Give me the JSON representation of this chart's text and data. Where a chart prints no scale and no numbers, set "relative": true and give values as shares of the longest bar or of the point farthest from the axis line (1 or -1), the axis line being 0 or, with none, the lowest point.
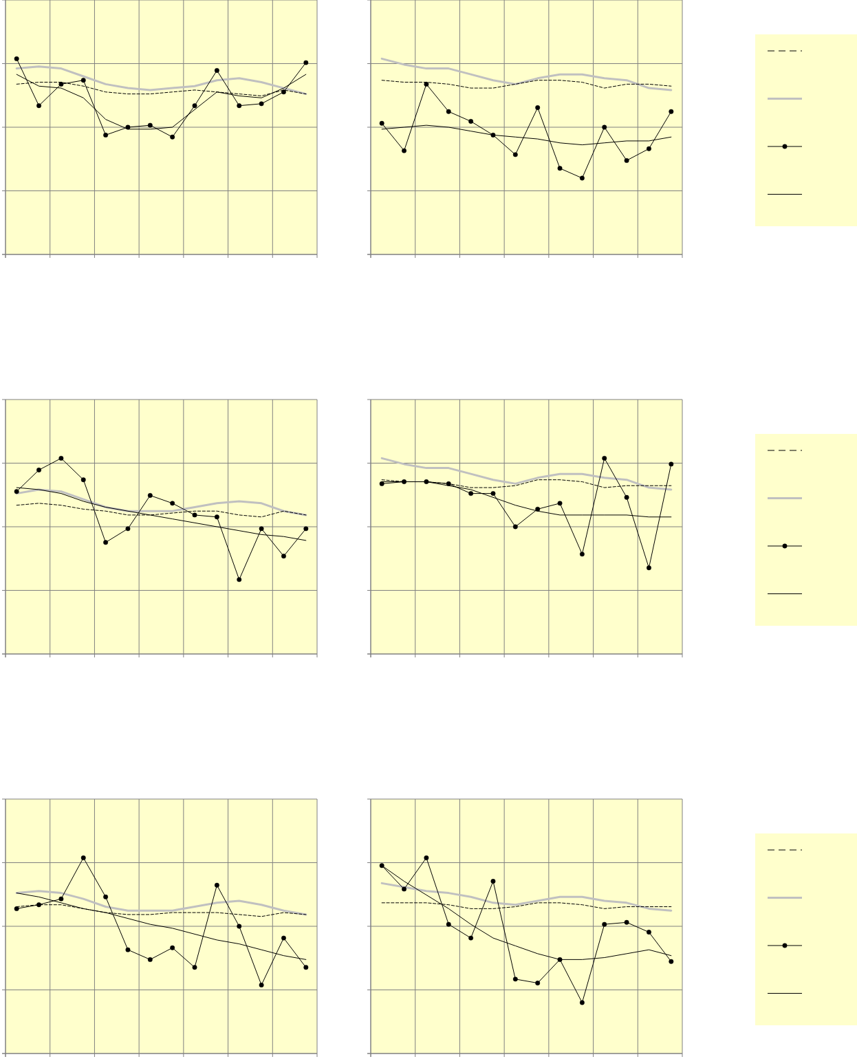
{
  "chart_data": [
    {
      "type": "line",
      "relative": true,
      "grid": true,
      "categories": [
        null,
        null,
        null,
        null,
        null,
        null,
        null,
        null,
        null,
        null,
        null,
        null,
        null,
        null
      ],
      "series": [
        {
          "color": "#000000",
          "line_style": "dashed",
          "marker": "none",
          "values": [
            0.87,
            0.88,
            0.88,
            0.86,
            0.83,
            0.82,
            0.82,
            0.83,
            0.84,
            0.83,
            0.82,
            0.81,
            0.84,
            0.82
          ]
        },
        {
          "color": "#c0c0c0",
          "line_style": "solid",
          "marker": "none",
          "values": [
            0.95,
            0.96,
            0.95,
            0.91,
            0.87,
            0.85,
            0.84,
            0.85,
            0.86,
            0.89,
            0.9,
            0.88,
            0.85,
            0.82
          ]
        },
        {
          "color": "#000000",
          "line_style": "solid",
          "marker": "circle",
          "values": [
            1.0,
            0.76,
            0.87,
            0.89,
            0.61,
            0.65,
            0.66,
            0.6,
            0.76,
            0.94,
            0.76,
            0.77,
            0.83,
            0.98
          ]
        },
        {
          "color": "#000000",
          "line_style": "solid",
          "marker": "none",
          "values": [
            0.92,
            0.86,
            0.85,
            0.8,
            0.69,
            0.64,
            0.64,
            0.65,
            0.74,
            0.83,
            0.81,
            0.8,
            0.85,
            0.92
          ]
        }
      ]
    },
    {
      "type": "line",
      "relative": true,
      "grid": true,
      "categories": [
        null,
        null,
        null,
        null,
        null,
        null,
        null,
        null,
        null,
        null,
        null,
        null,
        null,
        null
      ],
      "series": [
        {
          "color": "#000000",
          "line_style": "dashed",
          "marker": "none",
          "values": [
            0.89,
            0.88,
            0.88,
            0.87,
            0.85,
            0.85,
            0.87,
            0.89,
            0.89,
            0.88,
            0.85,
            0.87,
            0.87,
            0.86
          ]
        },
        {
          "color": "#c0c0c0",
          "line_style": "solid",
          "marker": "none",
          "values": [
            1.0,
            0.97,
            0.95,
            0.95,
            0.92,
            0.89,
            0.87,
            0.9,
            0.92,
            0.92,
            0.9,
            0.89,
            0.85,
            0.84
          ]
        },
        {
          "color": "#000000",
          "line_style": "solid",
          "marker": "circle",
          "values": [
            0.67,
            0.53,
            0.87,
            0.73,
            0.68,
            0.61,
            0.51,
            0.75,
            0.44,
            0.39,
            0.65,
            0.48,
            0.54,
            0.73
          ]
        },
        {
          "color": "#000000",
          "line_style": "solid",
          "marker": "none",
          "values": [
            0.64,
            0.65,
            0.66,
            0.65,
            0.63,
            0.61,
            0.6,
            0.59,
            0.57,
            0.56,
            0.57,
            0.58,
            0.58,
            0.6
          ]
        }
      ]
    },
    {
      "type": "line",
      "relative": true,
      "grid": true,
      "categories": [
        null,
        null,
        null,
        null,
        null,
        null,
        null,
        null,
        null,
        null,
        null,
        null,
        null,
        null
      ],
      "series": [
        {
          "color": "#000000",
          "line_style": "dashed",
          "marker": "none",
          "values": [
            0.76,
            0.77,
            0.76,
            0.74,
            0.73,
            0.71,
            0.71,
            0.72,
            0.73,
            0.73,
            0.71,
            0.7,
            0.73,
            0.71
          ]
        },
        {
          "color": "#c0c0c0",
          "line_style": "solid",
          "marker": "none",
          "values": [
            0.82,
            0.84,
            0.83,
            0.79,
            0.75,
            0.73,
            0.73,
            0.73,
            0.75,
            0.77,
            0.78,
            0.77,
            0.73,
            0.71
          ]
        },
        {
          "color": "#000000",
          "line_style": "solid",
          "marker": "circle",
          "values": [
            0.83,
            0.94,
            1.0,
            0.89,
            0.57,
            0.64,
            0.81,
            0.77,
            0.71,
            0.7,
            0.38,
            0.64,
            0.5,
            0.64
          ]
        },
        {
          "color": "#000000",
          "line_style": "solid",
          "marker": "none",
          "values": [
            0.85,
            0.84,
            0.82,
            0.78,
            0.75,
            0.73,
            0.71,
            0.69,
            0.67,
            0.65,
            0.63,
            0.61,
            0.6,
            0.58
          ]
        }
      ]
    },
    {
      "type": "line",
      "relative": true,
      "grid": true,
      "categories": [
        null,
        null,
        null,
        null,
        null,
        null,
        null,
        null,
        null,
        null,
        null,
        null,
        null,
        null
      ],
      "series": [
        {
          "color": "#000000",
          "line_style": "dashed",
          "marker": "none",
          "values": [
            0.89,
            0.88,
            0.88,
            0.87,
            0.85,
            0.85,
            0.86,
            0.89,
            0.89,
            0.88,
            0.85,
            0.86,
            0.86,
            0.86
          ]
        },
        {
          "color": "#c0c0c0",
          "line_style": "solid",
          "marker": "none",
          "values": [
            1.0,
            0.97,
            0.95,
            0.95,
            0.92,
            0.89,
            0.87,
            0.9,
            0.92,
            0.92,
            0.9,
            0.89,
            0.85,
            0.84
          ]
        },
        {
          "color": "#000000",
          "line_style": "solid",
          "marker": "circle",
          "values": [
            0.87,
            0.88,
            0.88,
            0.87,
            0.82,
            0.82,
            0.65,
            0.74,
            0.77,
            0.51,
            1.0,
            0.8,
            0.44,
            0.97
          ]
        },
        {
          "color": "#000000",
          "line_style": "solid",
          "marker": "none",
          "values": [
            0.88,
            0.88,
            0.88,
            0.86,
            0.84,
            0.8,
            0.76,
            0.73,
            0.71,
            0.71,
            0.71,
            0.71,
            0.7,
            0.7
          ]
        }
      ]
    },
    {
      "type": "line",
      "relative": true,
      "grid": true,
      "categories": [
        null,
        null,
        null,
        null,
        null,
        null,
        null,
        null,
        null,
        null,
        null,
        null,
        null,
        null
      ],
      "series": [
        {
          "color": "#000000",
          "line_style": "dashed",
          "marker": "none",
          "values": [
            0.75,
            0.76,
            0.76,
            0.74,
            0.72,
            0.71,
            0.71,
            0.72,
            0.72,
            0.72,
            0.71,
            0.7,
            0.72,
            0.71
          ]
        },
        {
          "color": "#c0c0c0",
          "line_style": "solid",
          "marker": "none",
          "values": [
            0.82,
            0.83,
            0.82,
            0.79,
            0.75,
            0.73,
            0.73,
            0.73,
            0.75,
            0.77,
            0.78,
            0.76,
            0.73,
            0.71
          ]
        },
        {
          "color": "#000000",
          "line_style": "solid",
          "marker": "circle",
          "values": [
            0.74,
            0.76,
            0.79,
            1.0,
            0.8,
            0.53,
            0.48,
            0.54,
            0.44,
            0.86,
            0.65,
            0.35,
            0.59,
            0.44
          ]
        },
        {
          "color": "#000000",
          "line_style": "solid",
          "marker": "none",
          "values": [
            0.82,
            0.8,
            0.77,
            0.74,
            0.72,
            0.69,
            0.66,
            0.64,
            0.61,
            0.58,
            0.56,
            0.53,
            0.5,
            0.48
          ]
        }
      ]
    },
    {
      "type": "line",
      "relative": true,
      "grid": true,
      "categories": [
        null,
        null,
        null,
        null,
        null,
        null,
        null,
        null,
        null,
        null,
        null,
        null,
        null,
        null
      ],
      "series": [
        {
          "color": "#000000",
          "line_style": "dashed",
          "marker": "none",
          "values": [
            0.77,
            0.77,
            0.77,
            0.76,
            0.74,
            0.74,
            0.75,
            0.77,
            0.77,
            0.76,
            0.74,
            0.75,
            0.75,
            0.75
          ]
        },
        {
          "color": "#c0c0c0",
          "line_style": "solid",
          "marker": "none",
          "values": [
            0.87,
            0.85,
            0.83,
            0.82,
            0.8,
            0.77,
            0.76,
            0.78,
            0.8,
            0.8,
            0.78,
            0.77,
            0.74,
            0.73
          ]
        },
        {
          "color": "#000000",
          "line_style": "solid",
          "marker": "circle",
          "values": [
            0.96,
            0.84,
            1.0,
            0.66,
            0.59,
            0.88,
            0.38,
            0.36,
            0.48,
            0.26,
            0.66,
            0.67,
            0.62,
            0.47
          ]
        },
        {
          "color": "#000000",
          "line_style": "solid",
          "marker": "none",
          "values": [
            0.96,
            0.88,
            0.81,
            0.74,
            0.66,
            0.59,
            0.55,
            0.51,
            0.48,
            0.48,
            0.49,
            0.51,
            0.53,
            0.5
          ]
        }
      ]
    }
  ]
}
